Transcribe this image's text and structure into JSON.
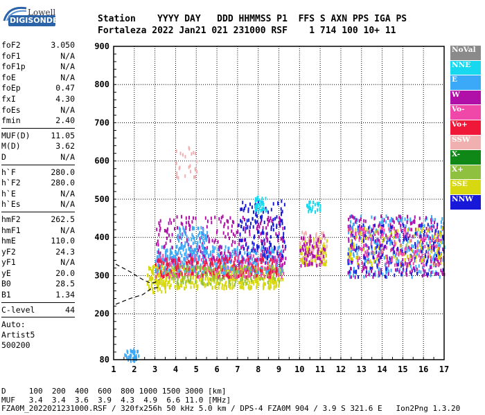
{
  "logo": {
    "line1": "Lowell",
    "line2": "DIGISONDE"
  },
  "header": {
    "labels": "Station    YYYY DAY   DDD HHMMSS P1  FFS S AXN PPS IGA PS",
    "values": "Fortaleza 2022 Jan21 021 231000 RSF    1 714 100 10+ 11"
  },
  "params": {
    "group1": [
      [
        "foF2",
        "3.050"
      ],
      [
        "foF1",
        "N/A"
      ],
      [
        "foF1p",
        "N/A"
      ],
      [
        "foE",
        "N/A"
      ],
      [
        "foEp",
        "0.47"
      ],
      [
        "fxI",
        "4.30"
      ],
      [
        "foEs",
        "N/A"
      ],
      [
        "fmin",
        "2.40"
      ]
    ],
    "group2": [
      [
        "MUF(D)",
        "11.05"
      ],
      [
        "M(D)",
        "3.62"
      ],
      [
        "D",
        "N/A"
      ]
    ],
    "group3": [
      [
        "h`F",
        "280.0"
      ],
      [
        "h`F2",
        "280.0"
      ],
      [
        "h`E",
        "N/A"
      ],
      [
        "h`Es",
        "N/A"
      ]
    ],
    "group4": [
      [
        "hmF2",
        "262.5"
      ],
      [
        "hmF1",
        "N/A"
      ],
      [
        "hmE",
        "110.0"
      ],
      [
        "yF2",
        "24.3"
      ],
      [
        "yF1",
        "N/A"
      ],
      [
        "yE",
        "20.0"
      ],
      [
        "B0",
        "28.5"
      ],
      [
        "B1",
        "1.34"
      ]
    ],
    "group5": [
      [
        "C-level",
        "44"
      ]
    ],
    "auto": [
      "Auto:",
      "Artist5",
      "500200"
    ]
  },
  "legend": [
    {
      "label": "NoVal",
      "color": "#8a8a8a"
    },
    {
      "label": "NNE",
      "color": "#18d8f0"
    },
    {
      "label": "E",
      "color": "#3ca8f8"
    },
    {
      "label": "W",
      "color": "#b010a8"
    },
    {
      "label": "Vo-",
      "color": "#f048a8"
    },
    {
      "label": "Vo+",
      "color": "#f01838"
    },
    {
      "label": "SSW",
      "color": "#f0b0b0"
    },
    {
      "label": "X-",
      "color": "#108818"
    },
    {
      "label": "X+",
      "color": "#90c040"
    },
    {
      "label": "SSE",
      "color": "#d8d810"
    },
    {
      "label": "NNW",
      "color": "#1818d8"
    }
  ],
  "bottom": {
    "line1": "D     100  200  400  600  800 1000 1500 3000 [km]",
    "line2": "MUF   3.4  3.4  3.6  3.9  4.3  4.9  6.6 11.0 [MHz]",
    "line3": "FZA0M_2022021231000.RSF / 320fx256h 50 kHz 5.0 km / DPS-4 FZA0M 904 / 3.9 S 321.6 E   Ion2Png 1.3.20"
  },
  "chart_data": {
    "type": "scatter",
    "xlim": [
      1,
      17
    ],
    "ylim": [
      80,
      900
    ],
    "xticks": [
      1,
      2,
      3,
      4,
      5,
      6,
      7,
      8,
      9,
      10,
      11,
      12,
      13,
      14,
      15,
      16,
      17
    ],
    "yticks": [
      80,
      200,
      300,
      400,
      500,
      600,
      700,
      800,
      900
    ],
    "grid": true,
    "legend_position": "right",
    "clusters": [
      {
        "x": [
          1.5,
          2.2
        ],
        "y": [
          80,
          110
        ],
        "color": "#3ca8f8",
        "n": 40
      },
      {
        "x": [
          2.6,
          3.5
        ],
        "y": [
          260,
          330
        ],
        "color": "#d8d810",
        "n": 80
      },
      {
        "x": [
          3,
          9.2
        ],
        "y": [
          270,
          330
        ],
        "color": "#d8d810",
        "n": 450
      },
      {
        "x": [
          3,
          9.2
        ],
        "y": [
          300,
          360
        ],
        "color": "#f048a8",
        "n": 300
      },
      {
        "x": [
          3,
          9.2
        ],
        "y": [
          310,
          380
        ],
        "color": "#3ca8f8",
        "n": 300
      },
      {
        "x": [
          3,
          9.3
        ],
        "y": [
          330,
          460
        ],
        "color": "#b010a8",
        "n": 250
      },
      {
        "x": [
          3,
          9
        ],
        "y": [
          300,
          350
        ],
        "color": "#f01838",
        "n": 150
      },
      {
        "x": [
          3.5,
          9
        ],
        "y": [
          280,
          330
        ],
        "color": "#90c040",
        "n": 120
      },
      {
        "x": [
          4,
          5.5
        ],
        "y": [
          360,
          430
        ],
        "color": "#3ca8f8",
        "n": 90
      },
      {
        "x": [
          7,
          9.3
        ],
        "y": [
          350,
          500
        ],
        "color": "#1818d8",
        "n": 120
      },
      {
        "x": [
          7.8,
          8.4
        ],
        "y": [
          470,
          510
        ],
        "color": "#18d8f0",
        "n": 40
      },
      {
        "x": [
          4,
          5
        ],
        "y": [
          560,
          640
        ],
        "color": "#f0b0b0",
        "n": 25
      },
      {
        "x": [
          10,
          11.3
        ],
        "y": [
          330,
          420
        ],
        "color": "#f0b0b0",
        "n": 80
      },
      {
        "x": [
          10,
          11.3
        ],
        "y": [
          330,
          400
        ],
        "color": "#d8d810",
        "n": 70
      },
      {
        "x": [
          10,
          11.2
        ],
        "y": [
          330,
          410
        ],
        "color": "#b010a8",
        "n": 60
      },
      {
        "x": [
          10.3,
          11
        ],
        "y": [
          470,
          500
        ],
        "color": "#18d8f0",
        "n": 25
      },
      {
        "x": [
          12.3,
          17
        ],
        "y": [
          300,
          460
        ],
        "color": "#3ca8f8",
        "n": 300
      },
      {
        "x": [
          12.3,
          17
        ],
        "y": [
          300,
          460
        ],
        "color": "#b010a8",
        "n": 250
      },
      {
        "x": [
          12.3,
          17
        ],
        "y": [
          300,
          440
        ],
        "color": "#1818d8",
        "n": 150
      },
      {
        "x": [
          12.3,
          17
        ],
        "y": [
          330,
          430
        ],
        "color": "#d8d810",
        "n": 120
      },
      {
        "x": [
          12.3,
          17
        ],
        "y": [
          330,
          430
        ],
        "color": "#f048a8",
        "n": 120
      }
    ],
    "traces": [
      {
        "x": [
          1.1,
          1.8,
          2.4,
          2.8,
          3.0,
          3.2
        ],
        "y": [
          330,
          310,
          290,
          280,
          282,
          290
        ],
        "style": "dashed"
      },
      {
        "x": [
          1.1,
          1.8,
          2.4,
          2.8,
          3.2
        ],
        "y": [
          225,
          240,
          250,
          265,
          270
        ],
        "style": "dashed"
      }
    ]
  }
}
